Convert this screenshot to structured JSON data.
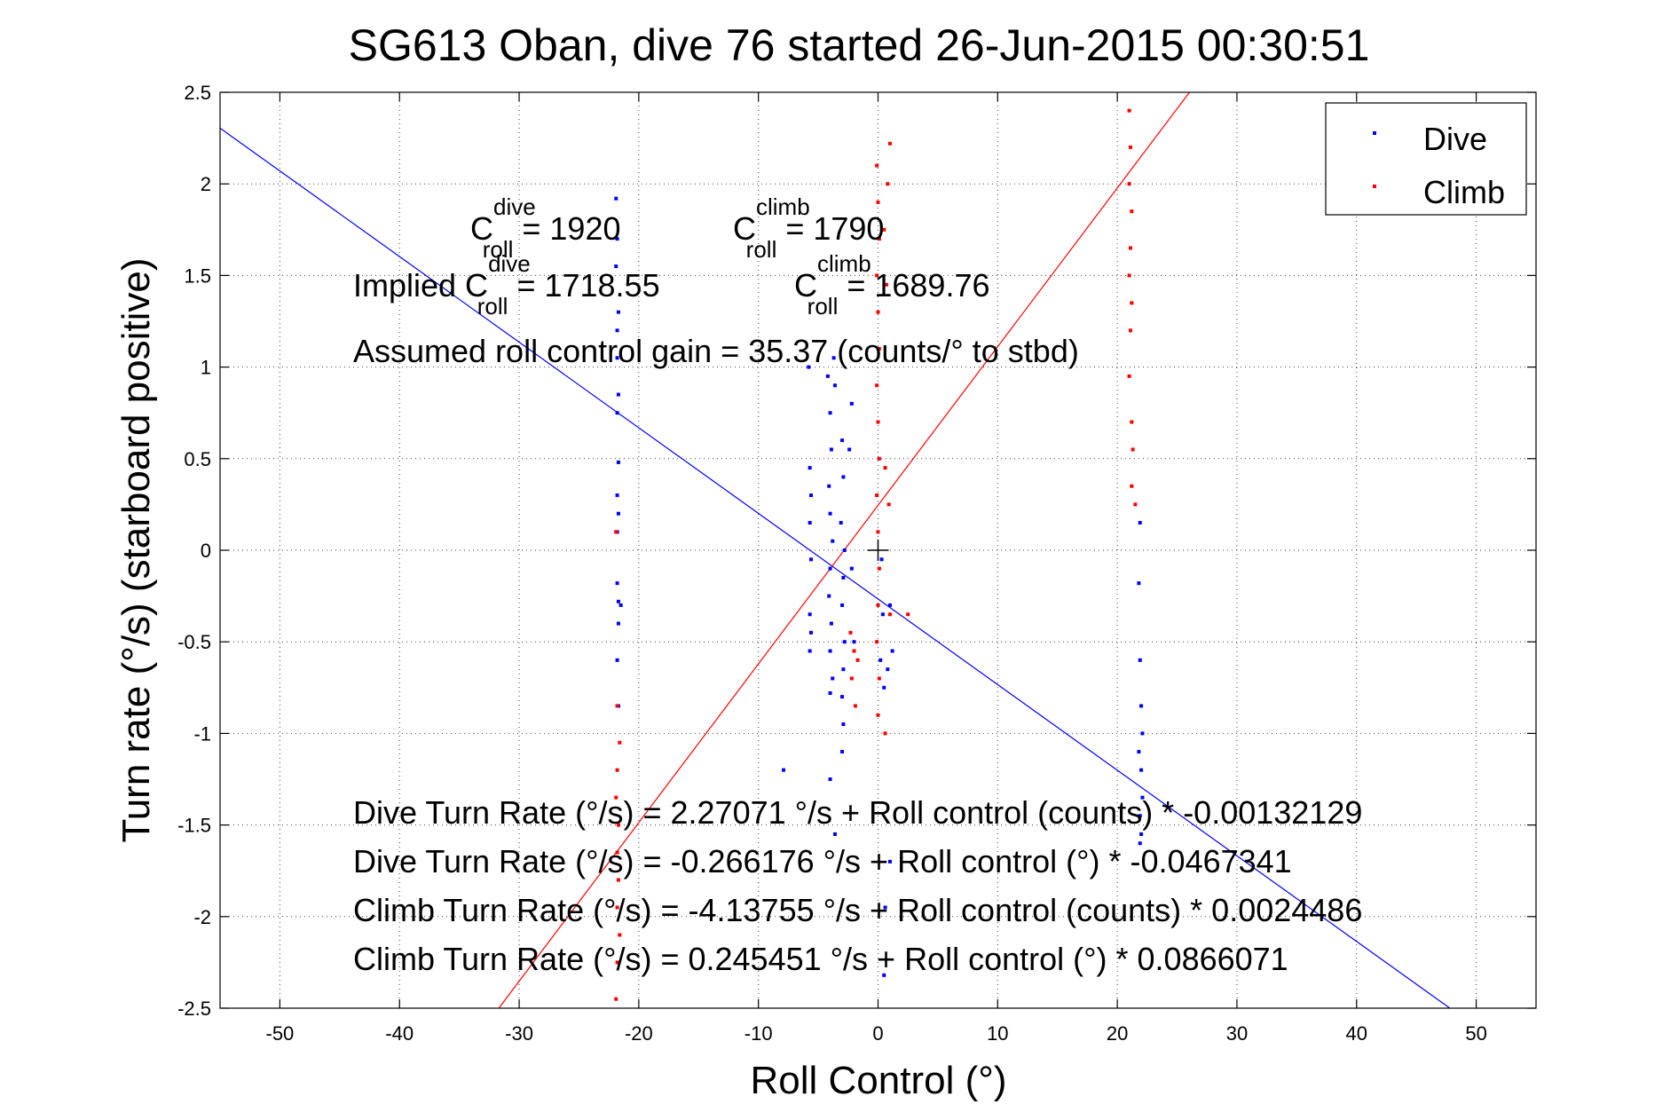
{
  "chart_data": {
    "type": "scatter",
    "title": "SG613 Oban, dive 76 started 26-Jun-2015 00:30:51",
    "xlabel": "Roll Control (°)",
    "ylabel": "Turn rate (°/s) (starboard positive)",
    "xlim": [
      -55,
      55
    ],
    "ylim": [
      -2.5,
      2.5
    ],
    "x_ticks": [
      -50,
      -40,
      -30,
      -20,
      -10,
      0,
      10,
      20,
      30,
      40,
      50
    ],
    "y_ticks": [
      -2.5,
      -2,
      -1.5,
      -1,
      -0.5,
      0,
      0.5,
      1,
      1.5,
      2,
      2.5
    ],
    "x_tick_labels": [
      "-50",
      "-40",
      "-30",
      "-20",
      "-10",
      "0",
      "10",
      "20",
      "30",
      "40",
      "50"
    ],
    "y_tick_labels": [
      "-2.5",
      "-2",
      "-1.5",
      "-1",
      "-0.5",
      "0",
      "0.5",
      "1",
      "1.5",
      "2",
      "2.5"
    ],
    "grid": true,
    "legend": {
      "placement": "top-right",
      "entries": [
        {
          "name": "Dive",
          "color": "#0000ff"
        },
        {
          "name": "Climb",
          "color": "#ff0000"
        }
      ]
    },
    "series": [
      {
        "name": "Dive",
        "color": "#0000ff",
        "points": [
          [
            -21.9,
            1.92
          ],
          [
            -21.8,
            1.7
          ],
          [
            -21.9,
            1.55
          ],
          [
            -21.7,
            1.3
          ],
          [
            -21.8,
            1.2
          ],
          [
            -21.8,
            1.05
          ],
          [
            -21.7,
            0.85
          ],
          [
            -21.8,
            0.75
          ],
          [
            -21.7,
            0.48
          ],
          [
            -21.8,
            0.3
          ],
          [
            -21.7,
            0.2
          ],
          [
            -21.8,
            0.1
          ],
          [
            -21.8,
            -0.18
          ],
          [
            -21.7,
            -0.28
          ],
          [
            -21.5,
            -0.3
          ],
          [
            -21.7,
            -0.4
          ],
          [
            -21.8,
            -0.6
          ],
          [
            -21.7,
            -0.85
          ],
          [
            -5.8,
            1.0
          ],
          [
            -5.7,
            0.45
          ],
          [
            -5.6,
            0.3
          ],
          [
            -5.7,
            0.15
          ],
          [
            -5.6,
            -0.05
          ],
          [
            -5.7,
            -0.35
          ],
          [
            -5.6,
            -0.45
          ],
          [
            -5.7,
            -0.55
          ],
          [
            -4.2,
            0.95
          ],
          [
            -4.0,
            0.75
          ],
          [
            -3.9,
            0.55
          ],
          [
            -4.1,
            0.35
          ],
          [
            -4.0,
            0.2
          ],
          [
            -3.8,
            0.05
          ],
          [
            -4.0,
            -0.1
          ],
          [
            -4.1,
            -0.25
          ],
          [
            -3.9,
            -0.4
          ],
          [
            -4.0,
            -0.55
          ],
          [
            -3.8,
            -0.7
          ],
          [
            -4.0,
            -0.78
          ],
          [
            -3.7,
            1.05
          ],
          [
            -3.6,
            0.9
          ],
          [
            -3.0,
            0.6
          ],
          [
            -2.9,
            0.4
          ],
          [
            -3.1,
            0.15
          ],
          [
            -2.8,
            0.0
          ],
          [
            -2.9,
            -0.15
          ],
          [
            -3.0,
            -0.3
          ],
          [
            -2.8,
            -0.5
          ],
          [
            -2.9,
            -0.65
          ],
          [
            -3.0,
            -0.8
          ],
          [
            -2.9,
            -0.95
          ],
          [
            -2.2,
            0.8
          ],
          [
            -2.4,
            0.55
          ],
          [
            -2.2,
            -0.1
          ],
          [
            -2.0,
            -0.5
          ],
          [
            -4.0,
            -1.25
          ],
          [
            -3.6,
            -1.55
          ],
          [
            -3.0,
            -1.1
          ],
          [
            -7.9,
            -1.2
          ],
          [
            0.3,
            -0.05
          ],
          [
            0.4,
            -0.35
          ],
          [
            0.2,
            -0.6
          ],
          [
            0.5,
            -0.75
          ],
          [
            1.0,
            -0.3
          ],
          [
            1.2,
            -0.55
          ],
          [
            0.8,
            -0.65
          ],
          [
            1.0,
            -1.7
          ],
          [
            0.6,
            -1.95
          ],
          [
            0.5,
            -2.32
          ],
          [
            21.9,
            0.15
          ],
          [
            21.8,
            -0.18
          ],
          [
            21.9,
            -0.6
          ],
          [
            22.0,
            -0.85
          ],
          [
            22.1,
            -1.0
          ],
          [
            21.8,
            -1.1
          ],
          [
            22.0,
            -1.2
          ],
          [
            22.1,
            -1.35
          ],
          [
            21.9,
            -1.45
          ],
          [
            22.0,
            -1.55
          ],
          [
            21.9,
            -1.6
          ]
        ]
      },
      {
        "name": "Climb",
        "color": "#ff0000",
        "points": [
          [
            -21.9,
            0.1
          ],
          [
            -21.8,
            -0.85
          ],
          [
            -21.6,
            -1.05
          ],
          [
            -21.8,
            -1.2
          ],
          [
            -21.9,
            -1.35
          ],
          [
            -21.7,
            -1.5
          ],
          [
            -21.8,
            -1.65
          ],
          [
            -21.7,
            -1.8
          ],
          [
            -21.8,
            -1.95
          ],
          [
            -21.6,
            -2.1
          ],
          [
            -21.8,
            -2.25
          ],
          [
            -21.9,
            -2.45
          ],
          [
            -2.3,
            -0.45
          ],
          [
            -2.0,
            -0.55
          ],
          [
            -2.2,
            -0.7
          ],
          [
            -1.9,
            -0.85
          ],
          [
            -1.7,
            -0.6
          ],
          [
            -0.1,
            2.1
          ],
          [
            0.0,
            1.9
          ],
          [
            0.1,
            1.7
          ],
          [
            -0.1,
            1.5
          ],
          [
            0.0,
            1.3
          ],
          [
            0.1,
            1.1
          ],
          [
            -0.1,
            0.9
          ],
          [
            0.0,
            0.7
          ],
          [
            0.1,
            0.5
          ],
          [
            -0.1,
            0.3
          ],
          [
            0.0,
            0.1
          ],
          [
            0.1,
            -0.1
          ],
          [
            0.0,
            -0.3
          ],
          [
            -0.1,
            -0.5
          ],
          [
            0.1,
            -0.7
          ],
          [
            0.0,
            -0.9
          ],
          [
            0.6,
            0.45
          ],
          [
            0.9,
            0.25
          ],
          [
            1.0,
            2.22
          ],
          [
            0.8,
            2.0
          ],
          [
            0.5,
            1.75
          ],
          [
            0.7,
            1.45
          ],
          [
            1.0,
            -0.35
          ],
          [
            2.5,
            -0.35
          ],
          [
            0.6,
            -1.0
          ],
          [
            21.0,
            2.4
          ],
          [
            21.1,
            2.2
          ],
          [
            21.0,
            2.0
          ],
          [
            21.2,
            1.85
          ],
          [
            21.1,
            1.65
          ],
          [
            21.0,
            1.5
          ],
          [
            21.2,
            1.35
          ],
          [
            21.1,
            1.2
          ],
          [
            21.0,
            0.95
          ],
          [
            21.2,
            0.7
          ],
          [
            21.3,
            0.55
          ],
          [
            21.2,
            0.35
          ],
          [
            21.5,
            0.25
          ]
        ]
      }
    ],
    "fit_lines": [
      {
        "name": "Dive",
        "color": "#0000ff",
        "intercept": -0.266176,
        "slope": -0.0467341
      },
      {
        "name": "Climb",
        "color": "#ff0000",
        "intercept": 0.245451,
        "slope": 0.0866071
      }
    ],
    "center_marker": [
      0,
      0
    ],
    "annotations": {
      "c_dive_base": "C",
      "c_dive_sup": "dive",
      "c_dive_sub": "roll",
      "c_dive_val": " = 1920",
      "c_climb_base": "C",
      "c_climb_sup": "climb",
      "c_climb_sub": "roll",
      "c_climb_val": " = 1790",
      "implied_prefix": "Implied C",
      "implied_dive_sup": "dive",
      "implied_dive_sub": "roll",
      "implied_dive_val": " = 1718.55",
      "implied_climb_base": "C",
      "implied_climb_sup": "climb",
      "implied_climb_sub": "roll",
      "implied_climb_val": " = 1689.76",
      "gain": "Assumed roll control gain = 35.37 (counts/° to stbd)",
      "eq1": "Dive Turn Rate (°/s) = 2.27071 °/s + Roll control (counts) * -0.00132129",
      "eq2": "Dive Turn Rate (°/s) = -0.266176 °/s + Roll control (°) * -0.0467341",
      "eq3": "Climb Turn Rate (°/s) = -4.13755 °/s + Roll control (counts) * 0.0024486",
      "eq4": "Climb Turn Rate (°/s) = 0.245451 °/s + Roll control (°) * 0.0866071"
    }
  }
}
